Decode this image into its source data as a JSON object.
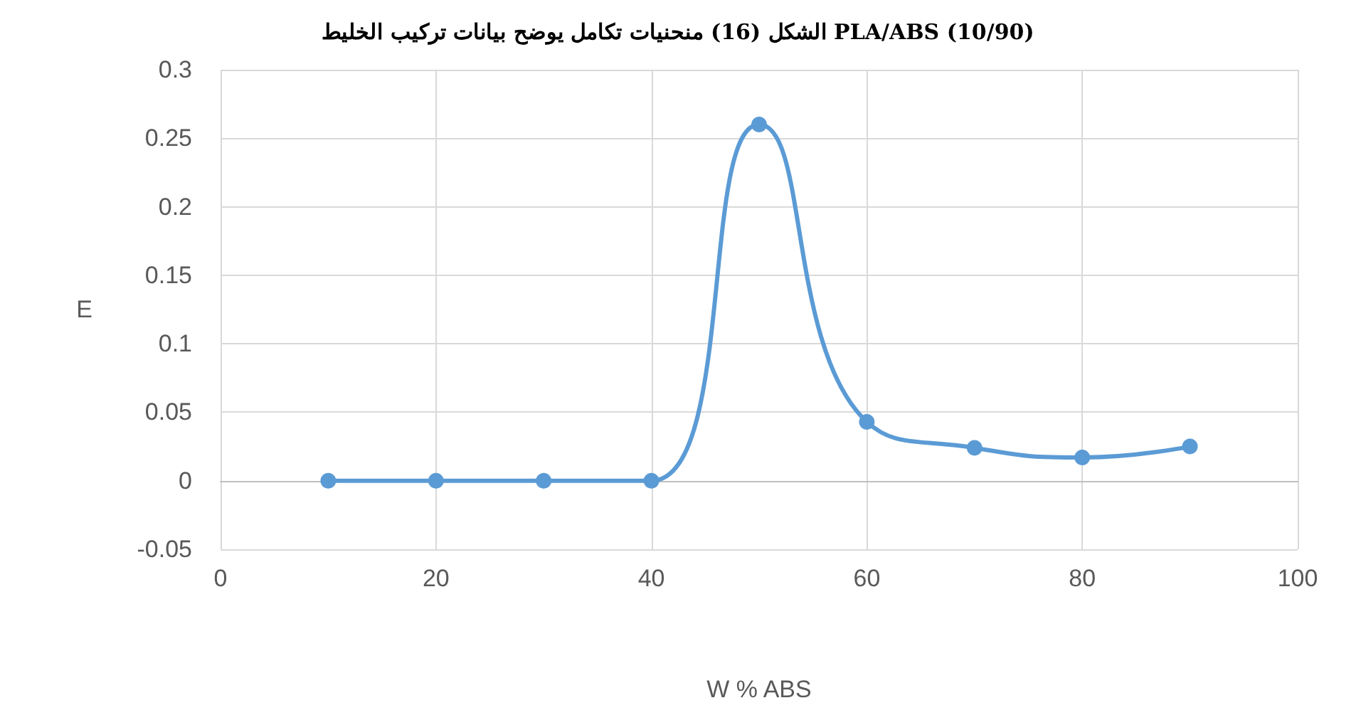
{
  "chart_data": {
    "type": "line",
    "title": "الشكل (16) منحنيات تكامل يوضح بيانات تركيب الخليط PLA/ABS (10/90)",
    "xlabel": "W % ABS",
    "ylabel": "E",
    "x": [
      10,
      20,
      30,
      40,
      50,
      60,
      70,
      80,
      90
    ],
    "series": [
      {
        "color": "#5b9bd5",
        "values": [
          0,
          0,
          0,
          0,
          0.26,
          0.043,
          0.024,
          0.017,
          0.025
        ]
      }
    ],
    "xlim": [
      0,
      100
    ],
    "xticks": [
      0,
      20,
      40,
      60,
      80,
      100
    ],
    "ylim": [
      -0.05,
      0.3
    ],
    "yticks": [
      -0.05,
      0,
      0.05,
      0.1,
      0.15,
      0.2,
      0.25,
      0.3
    ],
    "grid": true,
    "marker": "circle",
    "line_style": "solid"
  }
}
